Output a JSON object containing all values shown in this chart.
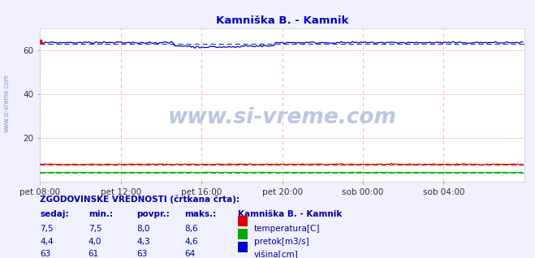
{
  "title": "Kamniška B. - Kamnik",
  "title_color": "#0000cc",
  "bg_color": "#f0f0ff",
  "plot_bg_color": "#ffffff",
  "grid_color_h": "#ffcccc",
  "grid_color_v": "#ffaaaa",
  "xlim": [
    0,
    288
  ],
  "ylim": [
    0,
    70
  ],
  "yticks": [
    20,
    40,
    60
  ],
  "xtick_labels": [
    "pet 08:00",
    "pet 12:00",
    "pet 16:00",
    "pet 20:00",
    "sob 00:00",
    "sob 04:00"
  ],
  "xtick_positions": [
    0,
    48,
    96,
    144,
    192,
    240
  ],
  "temp_color": "#dd0000",
  "pretok_color": "#00aa00",
  "visina_color": "#0000cc",
  "temp_avg": 8.0,
  "pretok_avg": 4.3,
  "visina_avg": 63.0,
  "temp_min": 7.5,
  "temp_max": 8.6,
  "pretok_min": 4.0,
  "pretok_max": 4.6,
  "visina_min": 61,
  "visina_max": 64,
  "watermark": "www.si-vreme.com",
  "left_label": "www.si-vreme.com",
  "legend_title": "Kamniška B. - Kamnik",
  "legend_items": [
    "temperatura[C]",
    "pretok[m3/s]",
    "višina[cm]"
  ],
  "legend_colors": [
    "#dd0000",
    "#00aa00",
    "#0000cc"
  ],
  "table_header": [
    "sedaj:",
    "min.:",
    "povpr.:",
    "maks.:"
  ],
  "table_rows": [
    [
      "7,5",
      "7,5",
      "8,0",
      "8,6"
    ],
    [
      "4,4",
      "4,0",
      "4,3",
      "4,6"
    ],
    [
      "63",
      "61",
      "63",
      "64"
    ]
  ],
  "info_text": "ZGODOVINSKE VREDNOSTI (črtkana črta):"
}
